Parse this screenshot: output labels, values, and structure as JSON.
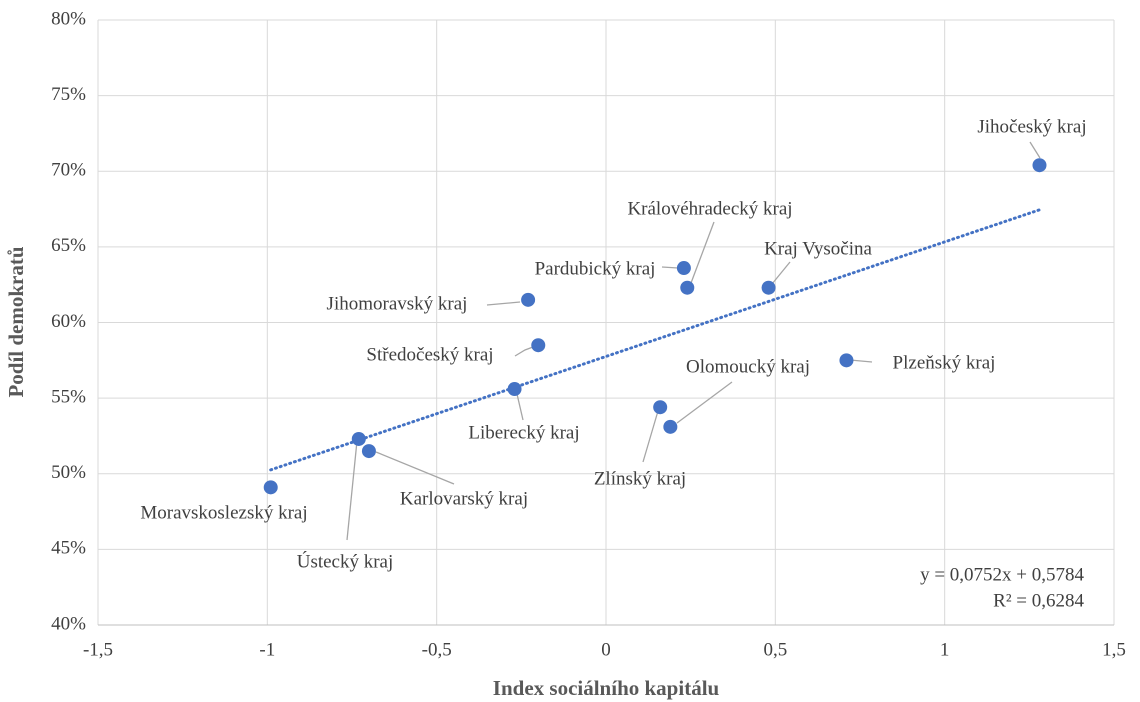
{
  "chart_data": {
    "type": "scatter",
    "xlabel": "Index sociálního kapitálu",
    "ylabel": "Podíl demokratů",
    "color": "#4472c4",
    "grid": true,
    "xlim": [
      -1.5,
      1.5
    ],
    "xticks": [
      {
        "value": -1.5,
        "label": "-1,5"
      },
      -1,
      {
        "value": -0.5,
        "label": "-0,5"
      },
      0,
      {
        "value": 0.5,
        "label": "0,5"
      },
      1,
      {
        "value": 1.5,
        "label": "1,5"
      }
    ],
    "ylim": [
      40,
      80
    ],
    "yticks": [
      {
        "value": 40,
        "label": "40%"
      },
      {
        "value": 45,
        "label": "45%"
      },
      {
        "value": 50,
        "label": "50%"
      },
      {
        "value": 55,
        "label": "55%"
      },
      {
        "value": 60,
        "label": "60%"
      },
      {
        "value": 65,
        "label": "65%"
      },
      {
        "value": 70,
        "label": "70%"
      },
      {
        "value": 75,
        "label": "75%"
      },
      {
        "value": 80,
        "label": "80%"
      }
    ],
    "point_labels": [
      "Jihočeský kraj",
      "Královéhradecký kraj",
      "Pardubický kraj",
      "Kraj Vysočina",
      "Jihomoravský kraj",
      "Středočeský kraj",
      "Plzeňský kraj",
      "Liberecký kraj",
      "Olomoucký kraj",
      "Zlínský kraj",
      "Ústecký kraj",
      "Karlovarský kraj",
      "Moravskoslezský kraj"
    ],
    "x": [
      1.28,
      0.24,
      0.23,
      0.48,
      -0.23,
      -0.2,
      0.71,
      -0.27,
      0.19,
      0.16,
      -0.73,
      -0.7,
      -0.99
    ],
    "values": [
      70.4,
      62.3,
      63.6,
      62.3,
      61.5,
      58.5,
      57.5,
      55.6,
      53.1,
      54.4,
      52.3,
      51.5,
      49.1
    ],
    "trendline": {
      "type": "linear",
      "equation": "y = 0,0752x + 0,5784",
      "r_squared": "R² = 0,6284"
    }
  }
}
